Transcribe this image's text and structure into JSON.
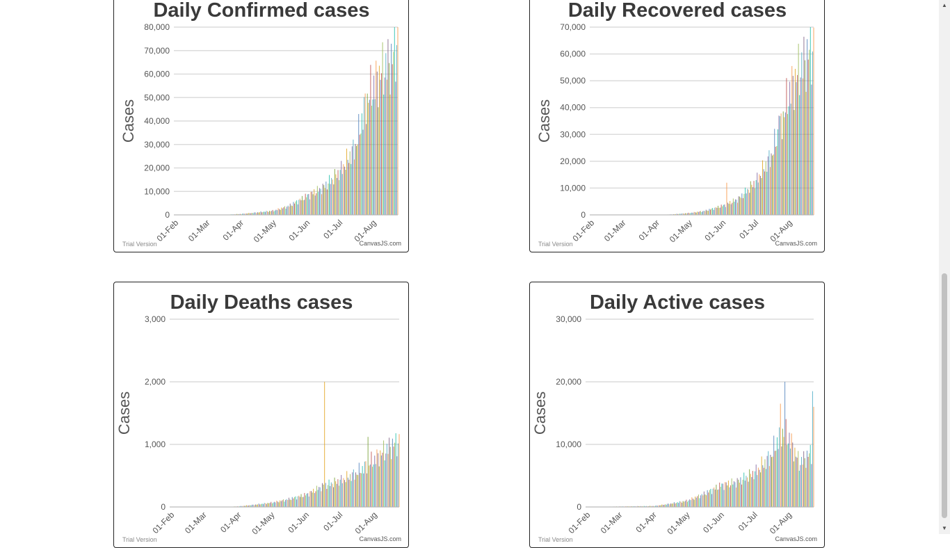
{
  "charts": [
    {
      "id": "confirmed",
      "title": "Daily Confirmed cases",
      "ylabel": "Cases",
      "yticks": [
        "0",
        "10,000",
        "20,000",
        "30,000",
        "40,000",
        "50,000",
        "60,000",
        "70,000",
        "80,000"
      ],
      "xticks": [
        "01-Feb",
        "01-Mar",
        "01-Apr",
        "01-May",
        "01-Jun",
        "01-Jul",
        "01-Aug"
      ],
      "watermark_left": "Trial Version",
      "watermark_right": "CanvasJS.com"
    },
    {
      "id": "recovered",
      "title": "Daily Recovered cases",
      "ylabel": "Cases",
      "yticks": [
        "0",
        "10,000",
        "20,000",
        "30,000",
        "40,000",
        "50,000",
        "60,000",
        "70,000"
      ],
      "xticks": [
        "01-Feb",
        "01-Mar",
        "01-Apr",
        "01-May",
        "01-Jun",
        "01-Jul",
        "01-Aug"
      ],
      "watermark_left": "Trial Version",
      "watermark_right": "CanvasJS.com"
    },
    {
      "id": "deaths",
      "title": "Daily Deaths cases",
      "ylabel": "Cases",
      "yticks": [
        "0",
        "1,000",
        "2,000",
        "3,000"
      ],
      "xticks": [
        "01-Feb",
        "01-Mar",
        "01-Apr",
        "01-May",
        "01-Jun",
        "01-Jul",
        "01-Aug"
      ],
      "watermark_left": "Trial Version",
      "watermark_right": "CanvasJS.com"
    },
    {
      "id": "active",
      "title": "Daily Active cases",
      "ylabel": "Cases",
      "yticks": [
        "0",
        "10,000",
        "20,000",
        "30,000"
      ],
      "xticks": [
        "01-Feb",
        "01-Mar",
        "01-Apr",
        "01-May",
        "01-Jun",
        "01-Jul",
        "01-Aug"
      ],
      "watermark_left": "Trial Version",
      "watermark_right": "CanvasJS.com"
    }
  ],
  "chart_data": [
    {
      "type": "bar",
      "title": "Daily Confirmed cases",
      "ylabel": "Cases",
      "x_start": "2020-01-30",
      "x_end": "2020-08-23",
      "ylim": [
        0,
        80000
      ],
      "grid": true,
      "anchors": [
        [
          "2020-01-30",
          1
        ],
        [
          "2020-03-01",
          0
        ],
        [
          "2020-03-15",
          20
        ],
        [
          "2020-04-01",
          400
        ],
        [
          "2020-04-15",
          1000
        ],
        [
          "2020-05-01",
          1800
        ],
        [
          "2020-05-15",
          3800
        ],
        [
          "2020-06-01",
          8200
        ],
        [
          "2020-06-15",
          11500
        ],
        [
          "2020-07-01",
          18500
        ],
        [
          "2020-07-15",
          29000
        ],
        [
          "2020-07-25",
          48000
        ],
        [
          "2020-08-01",
          55000
        ],
        [
          "2020-08-10",
          62000
        ],
        [
          "2020-08-18",
          66000
        ],
        [
          "2020-08-23",
          76000
        ]
      ],
      "bar_colors": [
        "#4f81bc",
        "#c0504e",
        "#9bbb58",
        "#23bfaa",
        "#8064a1",
        "#4aacc5",
        "#f79647",
        "#7f6084",
        "#77a033",
        "#e2a51f"
      ]
    },
    {
      "type": "bar",
      "title": "Daily Recovered cases",
      "ylabel": "Cases",
      "x_start": "2020-01-30",
      "x_end": "2020-08-23",
      "ylim": [
        0,
        70000
      ],
      "grid": true,
      "anchors": [
        [
          "2020-01-30",
          0
        ],
        [
          "2020-04-01",
          10
        ],
        [
          "2020-04-15",
          200
        ],
        [
          "2020-05-01",
          700
        ],
        [
          "2020-05-15",
          1500
        ],
        [
          "2020-06-01",
          3500
        ],
        [
          "2020-06-15",
          6000
        ],
        [
          "2020-07-01",
          12500
        ],
        [
          "2020-07-15",
          22000
        ],
        [
          "2020-07-25",
          35000
        ],
        [
          "2020-08-01",
          46000
        ],
        [
          "2020-08-10",
          54000
        ],
        [
          "2020-08-23",
          63000
        ]
      ],
      "spikes": [
        [
          "2020-06-04",
          12000
        ],
        [
          "2020-07-22",
          37000
        ],
        [
          "2020-07-29",
          51000
        ]
      ],
      "bar_colors": [
        "#4f81bc",
        "#c0504e",
        "#9bbb58",
        "#23bfaa",
        "#8064a1",
        "#4aacc5",
        "#f79647",
        "#7f6084",
        "#77a033",
        "#e2a51f"
      ]
    },
    {
      "type": "bar",
      "title": "Daily Deaths cases",
      "ylabel": "Cases",
      "x_start": "2020-01-30",
      "x_end": "2020-08-23",
      "ylim": [
        0,
        3000
      ],
      "grid": true,
      "anchors": [
        [
          "2020-01-30",
          0
        ],
        [
          "2020-03-20",
          0
        ],
        [
          "2020-04-01",
          10
        ],
        [
          "2020-04-15",
          35
        ],
        [
          "2020-05-01",
          70
        ],
        [
          "2020-05-15",
          120
        ],
        [
          "2020-06-01",
          200
        ],
        [
          "2020-06-15",
          330
        ],
        [
          "2020-07-01",
          420
        ],
        [
          "2020-07-15",
          530
        ],
        [
          "2020-08-01",
          760
        ],
        [
          "2020-08-10",
          900
        ],
        [
          "2020-08-23",
          1050
        ]
      ],
      "spikes": [
        [
          "2020-06-17",
          2000
        ],
        [
          "2020-07-26",
          1120
        ]
      ],
      "bar_colors": [
        "#4f81bc",
        "#c0504e",
        "#9bbb58",
        "#23bfaa",
        "#8064a1",
        "#4aacc5",
        "#f79647",
        "#7f6084",
        "#77a033",
        "#e2a51f"
      ]
    },
    {
      "type": "bar",
      "title": "Daily Active cases",
      "ylabel": "Cases",
      "x_start": "2020-01-30",
      "x_end": "2020-08-23",
      "ylim": [
        0,
        30000
      ],
      "grid": true,
      "anchors": [
        [
          "2020-01-30",
          0
        ],
        [
          "2020-04-01",
          150
        ],
        [
          "2020-04-15",
          500
        ],
        [
          "2020-05-01",
          1000
        ],
        [
          "2020-05-15",
          2000
        ],
        [
          "2020-06-01",
          3500
        ],
        [
          "2020-06-15",
          4000
        ],
        [
          "2020-07-01",
          5500
        ],
        [
          "2020-07-15",
          8000
        ],
        [
          "2020-07-25",
          12000
        ],
        [
          "2020-08-01",
          11000
        ],
        [
          "2020-08-10",
          7000
        ],
        [
          "2020-08-23",
          9000
        ]
      ],
      "spikes": [
        [
          "2020-07-28",
          20000
        ],
        [
          "2020-07-24",
          16500
        ],
        [
          "2020-08-22",
          18500
        ],
        [
          "2020-08-23",
          16000
        ]
      ],
      "bar_colors": [
        "#4f81bc",
        "#c0504e",
        "#9bbb58",
        "#23bfaa",
        "#8064a1",
        "#4aacc5",
        "#f79647",
        "#7f6084",
        "#77a033",
        "#e2a51f"
      ]
    }
  ]
}
